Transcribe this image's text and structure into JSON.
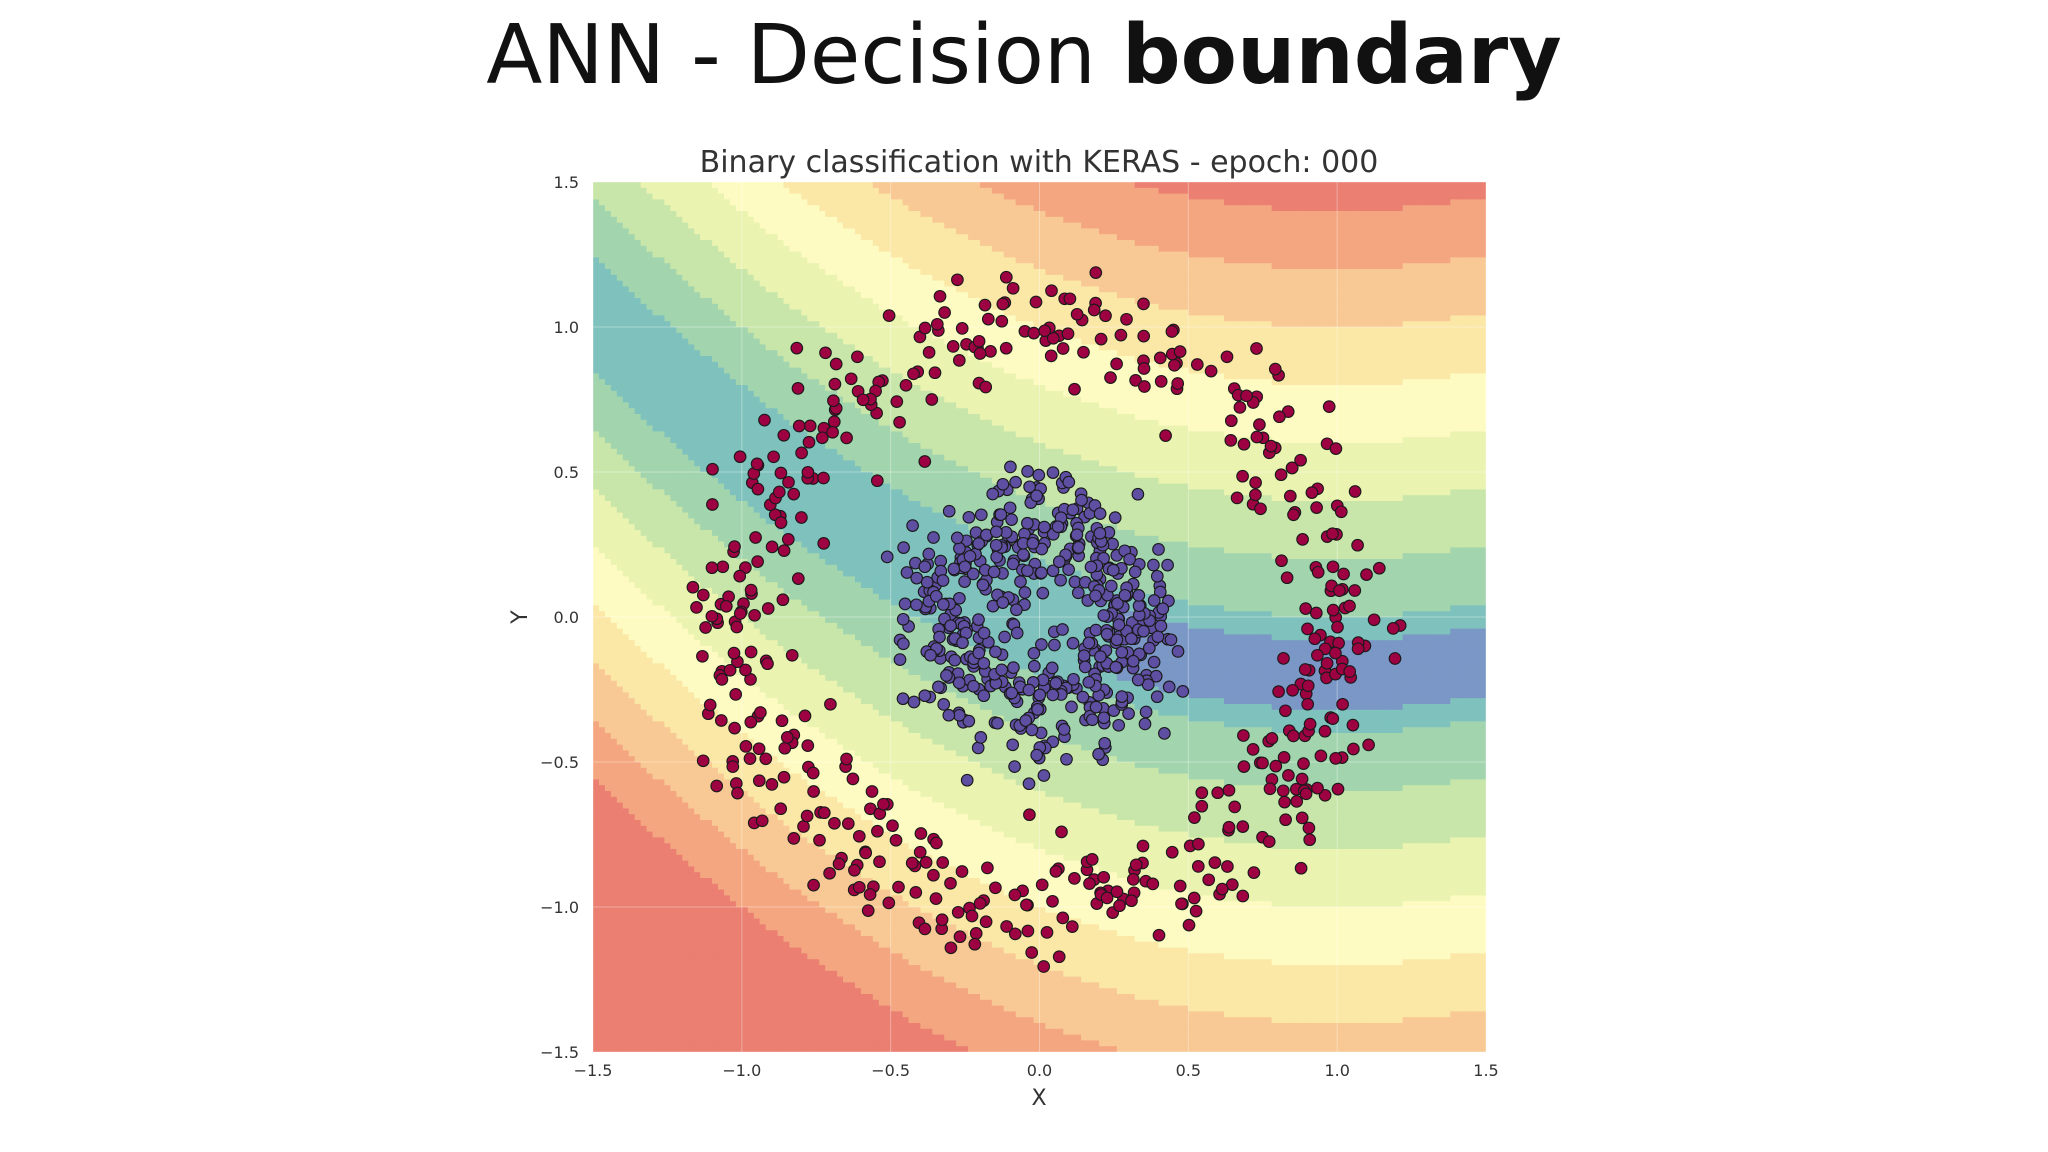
{
  "slide": {
    "title_regular": "ANN - Decision ",
    "title_bold": "boundary"
  },
  "chart_data": {
    "type": "scatter",
    "title": "Binary classification with KERAS - epoch: 000",
    "xlabel": "X",
    "ylabel": "Y",
    "xlim": [
      -1.5,
      1.5
    ],
    "ylim": [
      -1.5,
      1.5
    ],
    "xticks": [
      "−1.5",
      "−1.0",
      "−0.5",
      "0.0",
      "0.5",
      "1.0",
      "1.5"
    ],
    "yticks": [
      "1.5",
      "1.0",
      "0.5",
      "0.0",
      "−0.5",
      "−1.0",
      "−1.5"
    ],
    "grid": true,
    "background": "filled contour of predicted class probability (Spectral colormap)",
    "contour_colors": [
      "#ea7f72",
      "#f4a680",
      "#f8c994",
      "#fbe7a6",
      "#fdfbc2",
      "#eaf3b0",
      "#c9e6aa",
      "#a2d5ad",
      "#7fc2bd",
      "#7a97c6"
    ],
    "series": [
      {
        "class": 1,
        "shape": "outer ring",
        "radius": 1.0,
        "noise": 0.1,
        "color": "#9e0142",
        "count": 500
      },
      {
        "class": 0,
        "shape": "inner cluster",
        "radius": 0.3,
        "noise": 0.1,
        "color": "#5e4fa2",
        "count": 500
      }
    ]
  }
}
